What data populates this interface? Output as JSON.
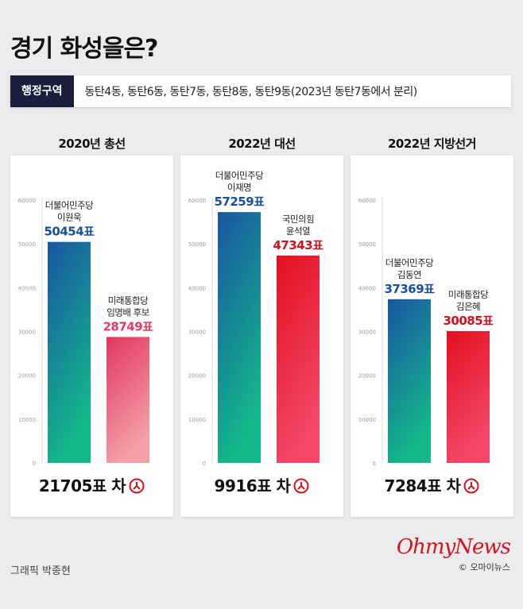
{
  "title": "경기 화성을은?",
  "district": {
    "label": "행정구역",
    "text": "동탄4동, 동탄6동, 동탄7동, 동탄8동, 동탄9동(2023년 동탄7동에서 분리)"
  },
  "chart_data": [
    {
      "type": "bar",
      "title": "2020년 총선",
      "ylim": [
        0,
        60000
      ],
      "yticks": [
        0,
        10000,
        20000,
        30000,
        40000,
        50000,
        60000
      ],
      "categories": [
        "더불어민주당 이원욱",
        "미래통합당 임명배 후보"
      ],
      "bars": [
        {
          "party": "더불어민주당",
          "candidate": "이원욱",
          "value": 50454,
          "value_label": "50454표",
          "color_top": "#1a55a3",
          "color_bottom": "#13b98a",
          "text_color": "#1a4f9c"
        },
        {
          "party": "미래통합당",
          "candidate": "임명배 후보",
          "value": 28749,
          "value_label": "28749표",
          "color_top": "#e2365f",
          "color_bottom": "#f4a0a9",
          "text_color": "#e03a66"
        }
      ],
      "difference": "21705표 차"
    },
    {
      "type": "bar",
      "title": "2022년 대선",
      "ylim": [
        0,
        60000
      ],
      "yticks": [
        0,
        10000,
        20000,
        30000,
        40000,
        50000,
        60000
      ],
      "categories": [
        "더불어민주당 이재명",
        "국민의힘 윤석열"
      ],
      "bars": [
        {
          "party": "더불어민주당",
          "candidate": "이재명",
          "value": 57259,
          "value_label": "57259표",
          "color_top": "#1a55a3",
          "color_bottom": "#13b98a",
          "text_color": "#1a4f9c"
        },
        {
          "party": "국민의힘",
          "candidate": "윤석열",
          "value": 47343,
          "value_label": "47343표",
          "color_top": "#e3101f",
          "color_bottom": "#f4486a",
          "text_color": "#d6101f"
        }
      ],
      "difference": "9916표 차"
    },
    {
      "type": "bar",
      "title": "2022년 지방선거",
      "ylim": [
        0,
        60000
      ],
      "yticks": [
        0,
        10000,
        20000,
        30000,
        40000,
        50000,
        60000
      ],
      "categories": [
        "더불어민주당 김동연",
        "미래통합당 김은혜"
      ],
      "bars": [
        {
          "party": "더불어민주당",
          "candidate": "김동연",
          "value": 37369,
          "value_label": "37369표",
          "color_top": "#1a55a3",
          "color_bottom": "#13b98a",
          "text_color": "#1a4f9c"
        },
        {
          "party": "미래통합당",
          "candidate": "김은혜",
          "value": 30085,
          "value_label": "30085표",
          "color_top": "#e3101f",
          "color_bottom": "#f4486a",
          "text_color": "#d6101f"
        }
      ],
      "difference": "7284표 차"
    }
  ],
  "diff_icon": "ballot-stamp-icon",
  "credit": "그래픽 박종현",
  "logo": {
    "main": "OhmyNews",
    "sub": "© 오마이뉴스"
  }
}
